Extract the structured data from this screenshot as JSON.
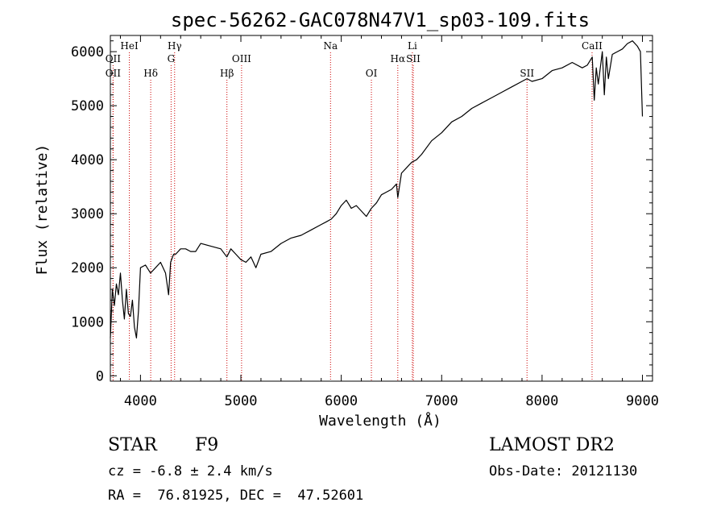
{
  "chart_data": {
    "type": "line",
    "title": "spec-56262-GAC078N47V1_sp03-109.fits",
    "xlabel": "Wavelength (Å)",
    "ylabel": "Flux (relative)",
    "xlim": [
      3700,
      9100
    ],
    "ylim": [
      -100,
      6300
    ],
    "xticks": [
      4000,
      5000,
      6000,
      7000,
      8000,
      9000
    ],
    "yticks": [
      0,
      1000,
      2000,
      3000,
      4000,
      5000,
      6000
    ],
    "xtick_labels": [
      "4000",
      "5000",
      "6000",
      "7000",
      "8000",
      "9000"
    ],
    "ytick_labels": [
      "0",
      "1000",
      "2000",
      "3000",
      "4000",
      "5000",
      "6000"
    ],
    "grid": false,
    "series_color": "#000000",
    "line_marker_color": "#cc0000",
    "spectrum": {
      "x": [
        3700,
        3720,
        3740,
        3760,
        3780,
        3800,
        3820,
        3840,
        3860,
        3880,
        3900,
        3920,
        3940,
        3960,
        3980,
        4000,
        4050,
        4100,
        4150,
        4200,
        4250,
        4280,
        4300,
        4330,
        4350,
        4400,
        4450,
        4500,
        4550,
        4600,
        4700,
        4800,
        4860,
        4900,
        4950,
        5000,
        5050,
        5100,
        5150,
        5200,
        5300,
        5400,
        5500,
        5600,
        5700,
        5800,
        5850,
        5900,
        5950,
        6000,
        6050,
        6100,
        6150,
        6200,
        6250,
        6300,
        6350,
        6400,
        6450,
        6500,
        6550,
        6563,
        6600,
        6650,
        6700,
        6750,
        6800,
        6900,
        7000,
        7100,
        7200,
        7300,
        7400,
        7500,
        7600,
        7700,
        7800,
        7850,
        7900,
        8000,
        8100,
        8200,
        8300,
        8400,
        8450,
        8500,
        8520,
        8540,
        8560,
        8600,
        8620,
        8640,
        8660,
        8700,
        8750,
        8800,
        8850,
        8900,
        8950,
        8980,
        9000
      ],
      "y": [
        700,
        1600,
        1300,
        1700,
        1500,
        1900,
        1400,
        1050,
        1600,
        1150,
        1100,
        1400,
        900,
        700,
        1200,
        2000,
        2050,
        1900,
        2000,
        2100,
        1900,
        1500,
        2100,
        2250,
        2250,
        2350,
        2350,
        2300,
        2300,
        2450,
        2400,
        2350,
        2200,
        2350,
        2250,
        2150,
        2100,
        2200,
        2000,
        2250,
        2300,
        2450,
        2550,
        2600,
        2700,
        2800,
        2850,
        2900,
        3000,
        3150,
        3250,
        3100,
        3150,
        3050,
        2950,
        3100,
        3200,
        3350,
        3400,
        3450,
        3550,
        3300,
        3750,
        3850,
        3950,
        4000,
        4100,
        4350,
        4500,
        4700,
        4800,
        4950,
        5050,
        5150,
        5250,
        5350,
        5450,
        5500,
        5450,
        5500,
        5650,
        5700,
        5800,
        5700,
        5750,
        5900,
        5100,
        5700,
        5400,
        6000,
        5200,
        5900,
        5500,
        5950,
        6000,
        6050,
        6150,
        6200,
        6100,
        6000,
        4800
      ]
    },
    "line_markers": [
      {
        "label": "OII",
        "wavelength": 3727,
        "row": 2
      },
      {
        "label": "OII",
        "wavelength": 3727,
        "row": 3
      },
      {
        "label": "HeI",
        "wavelength": 3889,
        "row": 1
      },
      {
        "label": "Hδ",
        "wavelength": 4102,
        "row": 3
      },
      {
        "label": "Hγ",
        "wavelength": 4340,
        "row": 1
      },
      {
        "label": "G",
        "wavelength": 4305,
        "row": 2
      },
      {
        "label": "Hβ",
        "wavelength": 4861,
        "row": 3
      },
      {
        "label": "OIII",
        "wavelength": 5007,
        "row": 2
      },
      {
        "label": "Na",
        "wavelength": 5893,
        "row": 1
      },
      {
        "label": "OI",
        "wavelength": 6300,
        "row": 3
      },
      {
        "label": "Hα",
        "wavelength": 6563,
        "row": 2
      },
      {
        "label": "SII",
        "wavelength": 6717,
        "row": 2
      },
      {
        "label": "Li",
        "wavelength": 6708,
        "row": 1
      },
      {
        "label": "SII",
        "wavelength": 7850,
        "row": 3
      },
      {
        "label": "CaII",
        "wavelength": 8498,
        "row": 1
      }
    ]
  },
  "info": {
    "class_label": "STAR",
    "subclass": "F9",
    "survey": "LAMOST DR2",
    "redshift": "cz = -6.8 ± 2.4 km/s",
    "obs_date": "Obs-Date: 20121130",
    "coords": "RA =  76.81925, DEC =  47.52601"
  }
}
